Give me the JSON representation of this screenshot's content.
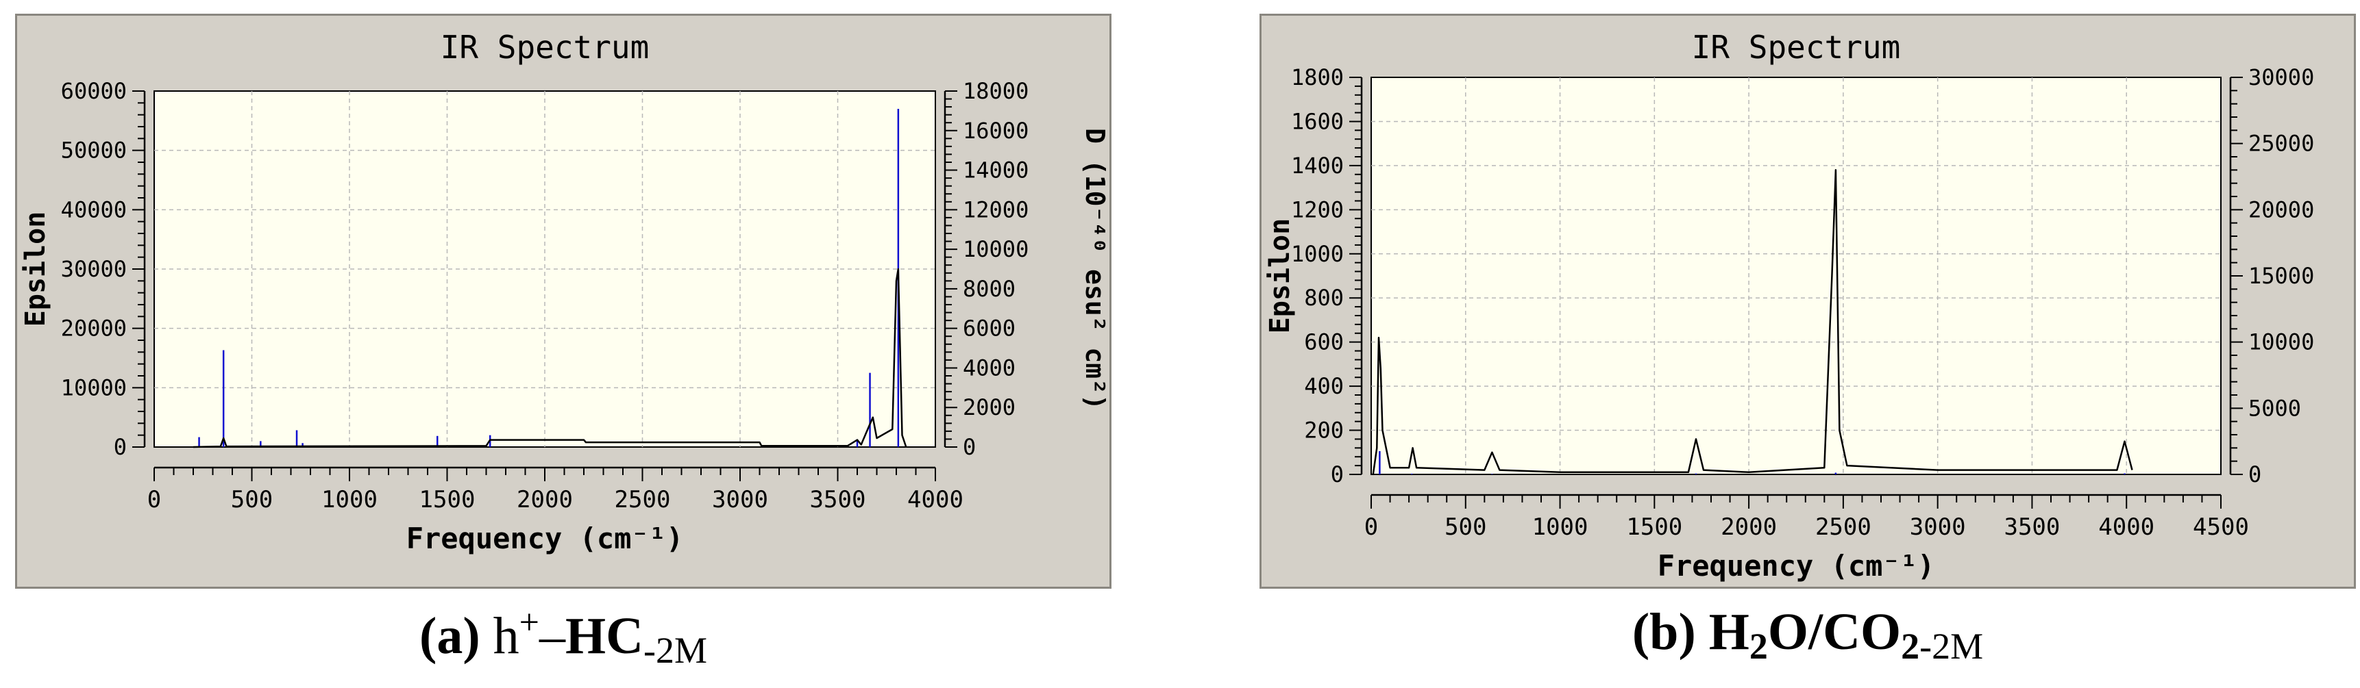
{
  "panels": [
    {
      "caption": {
        "label": "(a)",
        "base": "h",
        "sup": "+",
        "dash": "–",
        "main": "HC",
        "sub": "-2M"
      },
      "chart_data": {
        "type": "line",
        "title": "IR Spectrum",
        "xlabel": "Frequency (cm⁻¹)",
        "ylabel": "Epsilon",
        "y2label": "D (10⁻⁴⁰ esu² cm²)",
        "xlim": [
          0,
          4000
        ],
        "ylim": [
          0,
          60000
        ],
        "y2lim": [
          0,
          18000
        ],
        "xticks": [
          0,
          500,
          1000,
          1500,
          2000,
          2500,
          3000,
          3500,
          4000
        ],
        "yticks": [
          0,
          10000,
          20000,
          30000,
          40000,
          50000,
          60000
        ],
        "y2ticks": [
          0,
          2000,
          4000,
          6000,
          8000,
          10000,
          12000,
          14000,
          16000,
          18000
        ],
        "grid": true,
        "background": "#fffff0",
        "spectrum_color": "#000000",
        "stick_color": "#1010d0",
        "spectrum": [
          [
            200,
            0
          ],
          [
            340,
            100
          ],
          [
            355,
            1500
          ],
          [
            370,
            100
          ],
          [
            1700,
            200
          ],
          [
            1720,
            1200
          ],
          [
            2200,
            1200
          ],
          [
            2210,
            800
          ],
          [
            3100,
            800
          ],
          [
            3110,
            200
          ],
          [
            3550,
            200
          ],
          [
            3600,
            1200
          ],
          [
            3620,
            400
          ],
          [
            3660,
            3500
          ],
          [
            3680,
            5000
          ],
          [
            3700,
            1500
          ],
          [
            3780,
            3000
          ],
          [
            3800,
            28000
          ],
          [
            3810,
            30000
          ],
          [
            3830,
            2000
          ],
          [
            3850,
            0
          ]
        ],
        "sticks": [
          [
            230,
            500
          ],
          [
            355,
            4900
          ],
          [
            545,
            300
          ],
          [
            730,
            850
          ],
          [
            760,
            200
          ],
          [
            1450,
            560
          ],
          [
            1720,
            600
          ],
          [
            3600,
            300
          ],
          [
            3665,
            3750
          ],
          [
            3810,
            17100
          ]
        ]
      }
    },
    {
      "caption": {
        "label": "(b)",
        "pre": "H",
        "sub1": "2",
        "mid": "O/CO",
        "sub2": "2",
        "suffix": "-2M"
      },
      "chart_data": {
        "type": "line",
        "title": "IR Spectrum",
        "xlabel": "Frequency (cm⁻¹)",
        "ylabel": "Epsilon",
        "y2label": "D (10⁻⁴⁰ esu² cm²)",
        "xlim": [
          0,
          4500
        ],
        "ylim": [
          0,
          1800
        ],
        "y2lim": [
          0,
          30000
        ],
        "xticks": [
          0,
          500,
          1000,
          1500,
          2000,
          2500,
          3000,
          3500,
          4000,
          4500
        ],
        "yticks": [
          0,
          200,
          400,
          600,
          800,
          1000,
          1200,
          1400,
          1600,
          1800
        ],
        "y2ticks": [
          0,
          5000,
          10000,
          15000,
          20000,
          25000,
          30000
        ],
        "grid": true,
        "background": "#fffff0",
        "spectrum_color": "#000000",
        "stick_color": "#1010d0",
        "spectrum": [
          [
            10,
            0
          ],
          [
            30,
            120
          ],
          [
            40,
            620
          ],
          [
            50,
            480
          ],
          [
            60,
            200
          ],
          [
            100,
            30
          ],
          [
            200,
            30
          ],
          [
            220,
            120
          ],
          [
            240,
            30
          ],
          [
            600,
            20
          ],
          [
            640,
            100
          ],
          [
            680,
            20
          ],
          [
            1000,
            10
          ],
          [
            1680,
            10
          ],
          [
            1720,
            160
          ],
          [
            1760,
            20
          ],
          [
            2000,
            10
          ],
          [
            2400,
            30
          ],
          [
            2440,
            900
          ],
          [
            2460,
            1380
          ],
          [
            2480,
            200
          ],
          [
            2520,
            40
          ],
          [
            3000,
            20
          ],
          [
            3950,
            20
          ],
          [
            3990,
            150
          ],
          [
            4030,
            20
          ]
        ],
        "sticks": [
          [
            45,
            1760
          ],
          [
            215,
            60
          ],
          [
            640,
            40
          ],
          [
            1720,
            70
          ],
          [
            2460,
            130
          ],
          [
            3990,
            80
          ]
        ]
      }
    }
  ]
}
